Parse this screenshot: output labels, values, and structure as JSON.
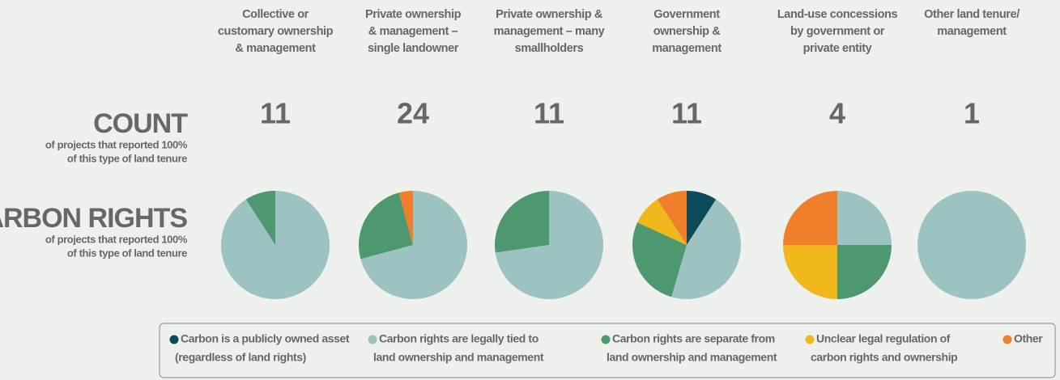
{
  "rows": {
    "count": {
      "title": "COUNT",
      "subtitle": [
        "of projects that reported 100%",
        "of this type of land tenure"
      ]
    },
    "carbon": {
      "title": "CARBON RIGHTS",
      "subtitle": [
        "of projects that reported 100%",
        "of this type of land tenure"
      ]
    }
  },
  "legend": {
    "categories": [
      [
        "Carbon is a publicly owned asset",
        "(regardless of land rights)"
      ],
      [
        "Carbon rights are legally tied to",
        "land ownership and management"
      ],
      [
        "Carbon rights are separate from",
        "land ownership and management"
      ],
      [
        "Unclear legal regulation of",
        "carbon rights and ownership"
      ],
      [
        "Other"
      ]
    ],
    "colors": [
      "#0d4a5a",
      "#9cc3c1",
      "#4e9870",
      "#f0b81c",
      "#f07f2c"
    ]
  },
  "chart_data": [
    {
      "type": "pie",
      "title": [
        "Collective or",
        "customary ownership",
        "& management"
      ],
      "count": 11,
      "values": [
        0,
        10,
        1,
        0,
        0
      ]
    },
    {
      "type": "pie",
      "title": [
        "Private ownership",
        "& management –",
        "single landowner"
      ],
      "count": 24,
      "values": [
        0,
        17,
        6,
        0,
        1
      ]
    },
    {
      "type": "pie",
      "title": [
        "Private ownership &",
        "management – many",
        "smallholders"
      ],
      "count": 11,
      "values": [
        0,
        8,
        3,
        0,
        0
      ]
    },
    {
      "type": "pie",
      "title": [
        "Government",
        "ownership &",
        "management"
      ],
      "count": 11,
      "values": [
        1,
        5,
        3,
        1,
        1
      ]
    },
    {
      "type": "pie",
      "title": [
        "Land-use concessions",
        "by government or",
        "private entity"
      ],
      "count": 4,
      "values": [
        0,
        1,
        1,
        1,
        1
      ]
    },
    {
      "type": "pie",
      "title": [
        "Other land tenure/",
        "management"
      ],
      "count": 1,
      "values": [
        0,
        1,
        0,
        0,
        0
      ]
    }
  ]
}
